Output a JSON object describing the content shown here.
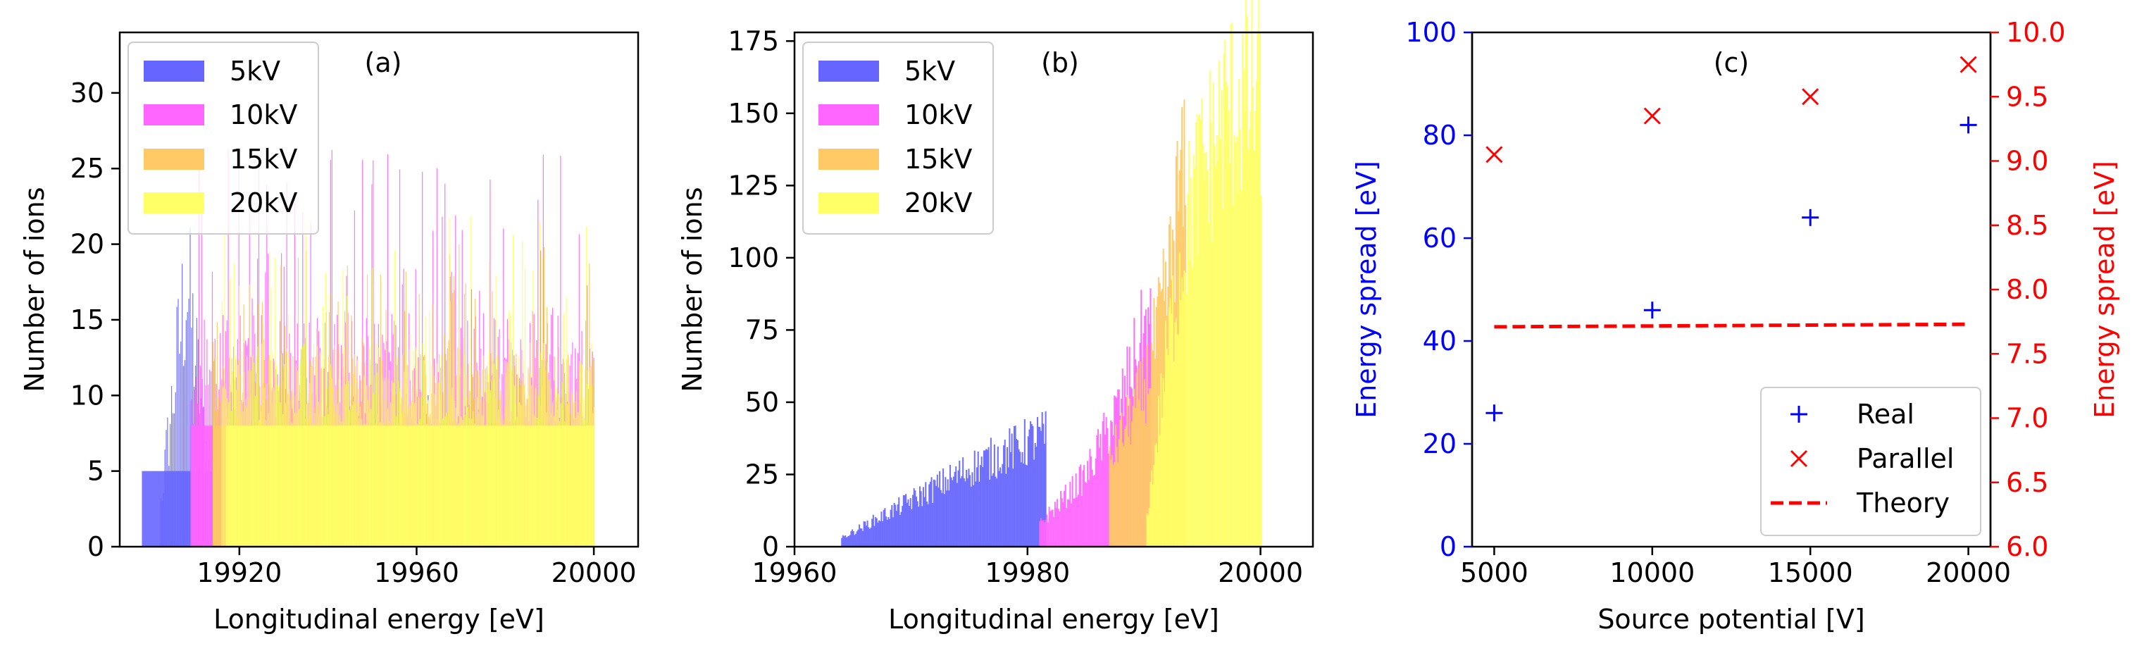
{
  "chart_data": [
    {
      "type": "bar",
      "panel_label": "(a)",
      "xlabel": "Longitudinal energy [eV]",
      "ylabel": "Number of ions",
      "xlim": [
        19893,
        20010
      ],
      "ylim": [
        0,
        34
      ],
      "xticks": [
        19920,
        19960,
        20000
      ],
      "xtick_labels": [
        "19920",
        "19960",
        "20000"
      ],
      "yticks": [
        0,
        5,
        10,
        15,
        20,
        25,
        30
      ],
      "ytick_labels": [
        "0",
        "5",
        "10",
        "15",
        "20",
        "25",
        "30"
      ],
      "legend_position": "top-left",
      "bin_width": 0.2,
      "series": [
        {
          "name": "5kV",
          "color": "#6666ff",
          "xrange": [
            19898,
            20000
          ],
          "typical": 5,
          "mode": "peak",
          "peak_at": 19908,
          "peak_max": 22,
          "fill_start": 19898
        },
        {
          "name": "10kV",
          "color": "#ff66ff",
          "xrange": [
            19909,
            20000
          ],
          "typical": 8,
          "max": 27,
          "fill_start": 19909
        },
        {
          "name": "15kV",
          "color": "#ffc966",
          "xrange": [
            19914,
            20000
          ],
          "typical": 8,
          "max": 20,
          "fill_start": 19914
        },
        {
          "name": "20kV",
          "color": "#ffff66",
          "xrange": [
            19916,
            20000
          ],
          "typical": 8,
          "max": 22,
          "fill_start": 19917
        }
      ]
    },
    {
      "type": "bar",
      "panel_label": "(b)",
      "xlabel": "Longitudinal energy [eV]",
      "ylabel": "Number of ions",
      "xlim": [
        19960,
        20004.5
      ],
      "ylim": [
        0,
        178
      ],
      "xticks": [
        19960,
        19980,
        20000
      ],
      "xtick_labels": [
        "19960",
        "19980",
        "20000"
      ],
      "yticks": [
        0,
        25,
        50,
        75,
        100,
        125,
        150,
        175
      ],
      "ytick_labels": [
        "0",
        "25",
        "50",
        "75",
        "100",
        "125",
        "150",
        "175"
      ],
      "legend_position": "top-left",
      "bin_width": 0.1,
      "series": [
        {
          "name": "5kV",
          "color": "#6666ff",
          "xrange": [
            19964,
            19981.5
          ],
          "ramp": [
            [
              19964,
              3
            ],
            [
              19975,
              27
            ],
            [
              19981,
              38
            ]
          ]
        },
        {
          "name": "10kV",
          "color": "#ff66ff",
          "xrange": [
            19981,
            19990.5
          ],
          "ramp": [
            [
              19981,
              8
            ],
            [
              19985,
              25
            ],
            [
              19988,
              50
            ],
            [
              19990,
              75
            ]
          ]
        },
        {
          "name": "15kV",
          "color": "#ffc966",
          "xrange": [
            19987,
            19993.5
          ],
          "ramp": [
            [
              19987,
              30
            ],
            [
              19990,
              55
            ],
            [
              19992,
              90
            ],
            [
              19993,
              125
            ]
          ]
        },
        {
          "name": "20kV",
          "color": "#ffff66",
          "xrange": [
            19990.2,
            20000
          ],
          "ramp": [
            [
              19990.2,
              10
            ],
            [
              19992,
              70
            ],
            [
              19994,
              120
            ],
            [
              19997,
              150
            ],
            [
              20000,
              158
            ]
          ]
        }
      ]
    },
    {
      "type": "scatter",
      "panel_label": "(c)",
      "xlabel": "Source potential [V]",
      "ylabel": "Energy spread [eV]",
      "y2label": "Energy spread [eV]",
      "xlim": [
        4300,
        20700
      ],
      "ylim": [
        0,
        100
      ],
      "y2lim": [
        6.0,
        10.0
      ],
      "xticks": [
        5000,
        10000,
        15000,
        20000
      ],
      "xtick_labels": [
        "5000",
        "10000",
        "15000",
        "20000"
      ],
      "yticks": [
        0,
        20,
        40,
        60,
        80,
        100
      ],
      "ytick_labels": [
        "0",
        "20",
        "40",
        "60",
        "80",
        "100"
      ],
      "y2ticks": [
        6.0,
        6.5,
        7.0,
        7.5,
        8.0,
        8.5,
        9.0,
        9.5,
        10.0
      ],
      "y2tick_labels": [
        "6.0",
        "6.5",
        "7.0",
        "7.5",
        "8.0",
        "8.5",
        "9.0",
        "9.5",
        "10.0"
      ],
      "left_axis_color": "#0000ff",
      "right_axis_color": "#ff0000",
      "legend_position": "bottom-right",
      "series": [
        {
          "name": "Real",
          "marker": "plus",
          "color": "#0000ff",
          "axis": "left",
          "x": [
            5000,
            10000,
            15000,
            20000
          ],
          "y": [
            26,
            46,
            64,
            82
          ]
        },
        {
          "name": "Parallel",
          "marker": "x",
          "color": "#ff0000",
          "axis": "right",
          "x": [
            5000,
            10000,
            15000,
            20000
          ],
          "y": [
            9.05,
            9.35,
            9.5,
            9.75
          ]
        },
        {
          "name": "Theory",
          "marker": "dashed-line",
          "color": "#ff0000",
          "axis": "right",
          "x": [
            5000,
            20000
          ],
          "y": [
            7.71,
            7.73
          ]
        }
      ]
    }
  ]
}
